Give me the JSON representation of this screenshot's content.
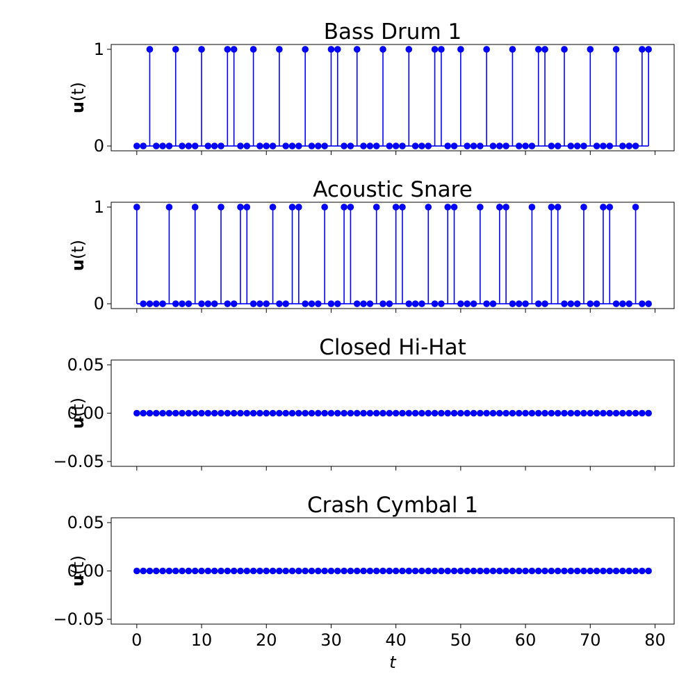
{
  "chart_data": {
    "type": "stem",
    "x": [
      0,
      1,
      2,
      3,
      4,
      5,
      6,
      7,
      8,
      9,
      10,
      11,
      12,
      13,
      14,
      15,
      16,
      17,
      18,
      19,
      20,
      21,
      22,
      23,
      24,
      25,
      26,
      27,
      28,
      29,
      30,
      31,
      32,
      33,
      34,
      35,
      36,
      37,
      38,
      39,
      40,
      41,
      42,
      43,
      44,
      45,
      46,
      47,
      48,
      49,
      50,
      51,
      52,
      53,
      54,
      55,
      56,
      57,
      58,
      59,
      60,
      61,
      62,
      63,
      64,
      65,
      66,
      67,
      68,
      69,
      70,
      71,
      72,
      73,
      74,
      75,
      76,
      77,
      78,
      79
    ],
    "xlabel": "t",
    "xticks": [
      "0",
      "10",
      "20",
      "30",
      "40",
      "50",
      "60",
      "70",
      "80"
    ],
    "xlim": [
      -3.95,
      82.95
    ],
    "color": "#0000ff",
    "panels": [
      {
        "title": "Bass Drum 1",
        "ylabel_bold": "u",
        "ylabel_rest": "(t)",
        "ylim": [
          -0.05,
          1.05
        ],
        "yticks": [
          {
            "value": 0,
            "label": "0"
          },
          {
            "value": 1,
            "label": "1"
          }
        ],
        "values": [
          0,
          0,
          1,
          0,
          0,
          0,
          1,
          0,
          0,
          0,
          1,
          0,
          0,
          0,
          1,
          1,
          0,
          0,
          1,
          0,
          0,
          0,
          1,
          0,
          0,
          0,
          1,
          0,
          0,
          0,
          1,
          1,
          0,
          0,
          1,
          0,
          0,
          0,
          1,
          0,
          0,
          0,
          1,
          0,
          0,
          0,
          1,
          1,
          0,
          0,
          1,
          0,
          0,
          0,
          1,
          0,
          0,
          0,
          1,
          0,
          0,
          0,
          1,
          1,
          0,
          0,
          1,
          0,
          0,
          0,
          1,
          0,
          0,
          0,
          1,
          0,
          0,
          0,
          1,
          1
        ]
      },
      {
        "title": "Acoustic Snare",
        "ylabel_bold": "u",
        "ylabel_rest": "(t)",
        "ylim": [
          -0.05,
          1.05
        ],
        "yticks": [
          {
            "value": 0,
            "label": "0"
          },
          {
            "value": 1,
            "label": "1"
          }
        ],
        "values": [
          1,
          0,
          0,
          0,
          0,
          1,
          0,
          0,
          0,
          1,
          0,
          0,
          0,
          1,
          0,
          0,
          1,
          1,
          0,
          0,
          0,
          1,
          0,
          0,
          1,
          1,
          0,
          0,
          0,
          1,
          0,
          0,
          1,
          1,
          0,
          0,
          0,
          1,
          0,
          0,
          1,
          1,
          0,
          0,
          0,
          1,
          0,
          0,
          1,
          1,
          0,
          0,
          0,
          1,
          0,
          0,
          1,
          1,
          0,
          0,
          0,
          1,
          0,
          0,
          1,
          1,
          0,
          0,
          0,
          1,
          0,
          0,
          1,
          1,
          0,
          0,
          0,
          1,
          0,
          0
        ]
      },
      {
        "title": "Closed Hi-Hat",
        "ylabel_bold": "u",
        "ylabel_rest": "(t)",
        "ylim": [
          -0.055,
          0.055
        ],
        "yticks": [
          {
            "value": -0.05,
            "label": "−0.05"
          },
          {
            "value": 0,
            "label": "0.00"
          },
          {
            "value": 0.05,
            "label": "0.05"
          }
        ],
        "values": [
          0,
          0,
          0,
          0,
          0,
          0,
          0,
          0,
          0,
          0,
          0,
          0,
          0,
          0,
          0,
          0,
          0,
          0,
          0,
          0,
          0,
          0,
          0,
          0,
          0,
          0,
          0,
          0,
          0,
          0,
          0,
          0,
          0,
          0,
          0,
          0,
          0,
          0,
          0,
          0,
          0,
          0,
          0,
          0,
          0,
          0,
          0,
          0,
          0,
          0,
          0,
          0,
          0,
          0,
          0,
          0,
          0,
          0,
          0,
          0,
          0,
          0,
          0,
          0,
          0,
          0,
          0,
          0,
          0,
          0,
          0,
          0,
          0,
          0,
          0,
          0,
          0,
          0,
          0,
          0
        ]
      },
      {
        "title": "Crash Cymbal 1",
        "ylabel_bold": "u",
        "ylabel_rest": "(t)",
        "ylim": [
          -0.055,
          0.055
        ],
        "yticks": [
          {
            "value": -0.05,
            "label": "−0.05"
          },
          {
            "value": 0,
            "label": "0.00"
          },
          {
            "value": 0.05,
            "label": "0.05"
          }
        ],
        "values": [
          0,
          0,
          0,
          0,
          0,
          0,
          0,
          0,
          0,
          0,
          0,
          0,
          0,
          0,
          0,
          0,
          0,
          0,
          0,
          0,
          0,
          0,
          0,
          0,
          0,
          0,
          0,
          0,
          0,
          0,
          0,
          0,
          0,
          0,
          0,
          0,
          0,
          0,
          0,
          0,
          0,
          0,
          0,
          0,
          0,
          0,
          0,
          0,
          0,
          0,
          0,
          0,
          0,
          0,
          0,
          0,
          0,
          0,
          0,
          0,
          0,
          0,
          0,
          0,
          0,
          0,
          0,
          0,
          0,
          0,
          0,
          0,
          0,
          0,
          0,
          0,
          0,
          0,
          0,
          0
        ]
      }
    ]
  }
}
